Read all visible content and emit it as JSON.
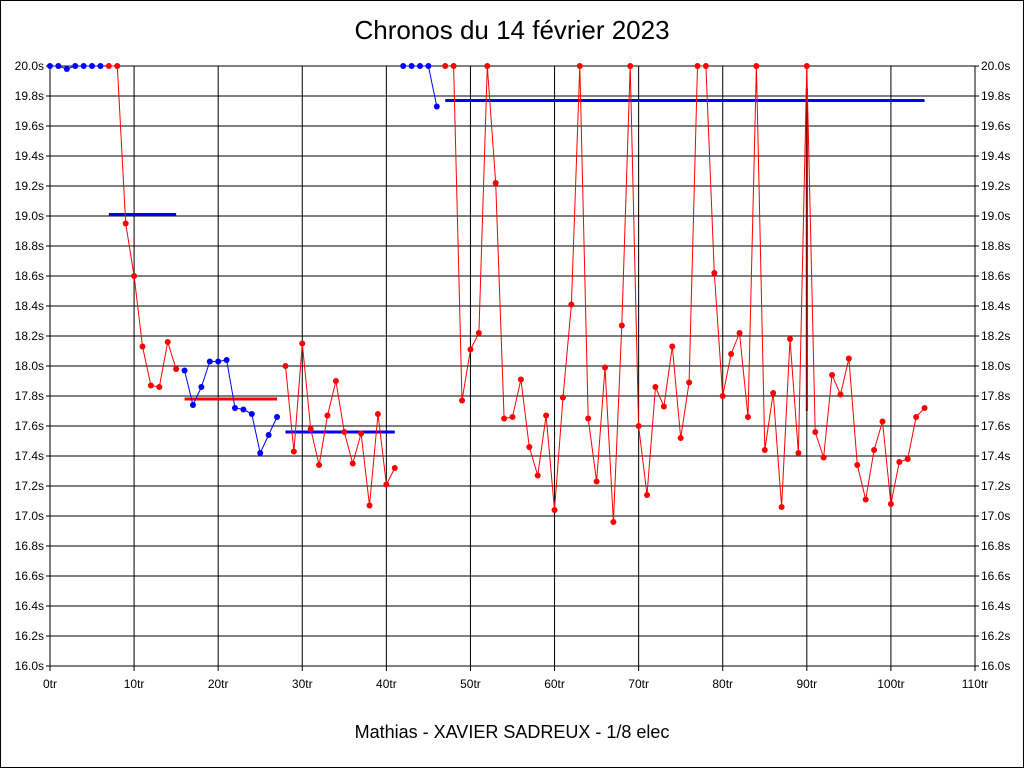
{
  "chart_data": {
    "type": "line",
    "title": "Chronos du 14 février 2023",
    "xlabel": "Mathias - XAVIER SADREUX - 1/8 elec",
    "ylabel": "",
    "xlim": [
      0,
      110
    ],
    "ylim": [
      16.0,
      20.0
    ],
    "x_ticks": [
      "0tr",
      "10tr",
      "20tr",
      "30tr",
      "40tr",
      "50tr",
      "60tr",
      "70tr",
      "80tr",
      "90tr",
      "100tr",
      "110tr"
    ],
    "y_ticks": [
      "16.0s",
      "16.2s",
      "16.4s",
      "16.6s",
      "16.8s",
      "17.0s",
      "17.2s",
      "17.4s",
      "17.6s",
      "17.8s",
      "18.0s",
      "18.2s",
      "18.4s",
      "18.6s",
      "18.8s",
      "19.0s",
      "19.2s",
      "19.4s",
      "19.6s",
      "19.8s",
      "20.0s"
    ],
    "grid": true,
    "colors": {
      "red": "#ff0000",
      "blue": "#0000ff",
      "dark_red": "#8b0000"
    },
    "series": [
      {
        "color": "#0000ff",
        "x": [
          0,
          1,
          2,
          3,
          4,
          5,
          6
        ],
        "y": [
          20.0,
          20.0,
          19.98,
          20.0,
          20.0,
          20.0,
          20.0
        ]
      },
      {
        "color": "#ff0000",
        "x": [
          7,
          8,
          9,
          10,
          11,
          12,
          13,
          14,
          15
        ],
        "y": [
          20.0,
          20.0,
          18.95,
          18.6,
          18.13,
          17.87,
          17.86,
          18.16,
          17.98
        ]
      },
      {
        "color": "#0000ff",
        "x": [
          16,
          17,
          18,
          19,
          20,
          21,
          22,
          23,
          24,
          25,
          26,
          27
        ],
        "y": [
          17.97,
          17.74,
          17.86,
          18.03,
          18.03,
          18.04,
          17.72,
          17.71,
          17.68,
          17.42,
          17.54,
          17.66
        ]
      },
      {
        "color": "#ff0000",
        "x": [
          28,
          29,
          30,
          31,
          32,
          33,
          34,
          35,
          36,
          37,
          38,
          39,
          40,
          41
        ],
        "y": [
          18.0,
          17.43,
          18.15,
          17.58,
          17.34,
          17.67,
          17.9,
          17.56,
          17.35,
          17.55,
          17.07,
          17.68,
          17.21,
          17.32
        ]
      },
      {
        "color": "#0000ff",
        "x": [
          42,
          43,
          44,
          45,
          46
        ],
        "y": [
          20.0,
          20.0,
          20.0,
          20.0,
          19.73
        ]
      },
      {
        "color": "#ff0000",
        "x": [
          47,
          48,
          49,
          50,
          51,
          52,
          53,
          54,
          55,
          56,
          57,
          58,
          59,
          60,
          61,
          62,
          63,
          64,
          65,
          66,
          67,
          68,
          69,
          70,
          71,
          72,
          73,
          74,
          75,
          76,
          77,
          78,
          79,
          80,
          81,
          82,
          83,
          84,
          85,
          86,
          87,
          88,
          89,
          90,
          91,
          92,
          93,
          94,
          95,
          96,
          97,
          98,
          99,
          100,
          101,
          102,
          103,
          104
        ],
        "y": [
          20.0,
          20.0,
          17.77,
          18.11,
          18.22,
          20.0,
          19.22,
          17.65,
          17.66,
          17.91,
          17.46,
          17.27,
          17.67,
          17.04,
          17.79,
          18.41,
          20.0,
          17.65,
          17.23,
          17.99,
          16.96,
          18.27,
          20.0,
          17.6,
          17.14,
          17.86,
          17.73,
          18.13,
          17.52,
          17.89,
          20.0,
          20.0,
          18.62,
          17.8,
          18.08,
          18.22,
          17.66,
          20.0,
          17.44,
          17.82,
          17.06,
          18.18,
          17.42,
          20.0,
          17.56,
          17.39,
          17.94,
          17.81,
          18.05,
          17.34,
          17.11,
          17.44,
          17.63,
          17.08,
          17.36,
          17.38,
          17.66,
          17.72
        ]
      }
    ],
    "averages": [
      {
        "color": "#0000ff",
        "x": [
          7,
          15
        ],
        "y": 19.01
      },
      {
        "color": "#ff0000",
        "x": [
          16,
          27
        ],
        "y": 17.78
      },
      {
        "color": "#0000ff",
        "x": [
          28,
          41
        ],
        "y": 17.56
      },
      {
        "color": "#0000ff",
        "x": [
          47,
          104
        ],
        "y": 19.77
      }
    ],
    "vertical_marks": [
      {
        "color": "#8b0000",
        "x": 90,
        "y": [
          17.7,
          19.85
        ]
      }
    ]
  }
}
